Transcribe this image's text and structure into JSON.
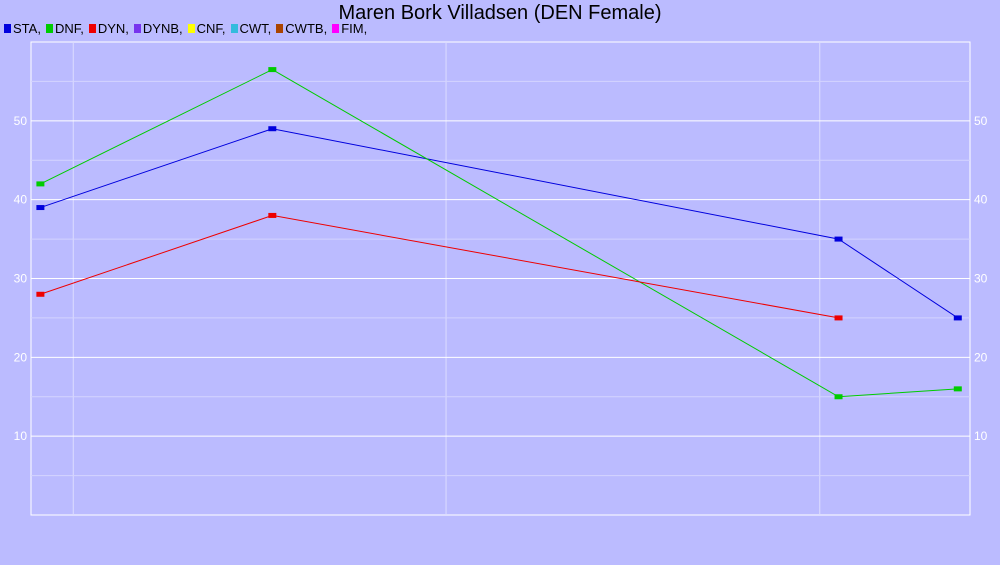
{
  "chart_data": {
    "type": "line",
    "title": "Maren Bork Villadsen (DEN Female)",
    "legend_position": "top-left",
    "legend": [
      {
        "label": "STA,",
        "color": "#0000dd"
      },
      {
        "label": "DNF,",
        "color": "#00cc00"
      },
      {
        "label": "DYN,",
        "color": "#ee0000"
      },
      {
        "label": "DYNB,",
        "color": "#7733ee"
      },
      {
        "label": "CNF,",
        "color": "#ffff00"
      },
      {
        "label": "CWT,",
        "color": "#33bbdd"
      },
      {
        "label": "CWTB,",
        "color": "#aa4400"
      },
      {
        "label": "FIM,",
        "color": "#ff00ff"
      }
    ],
    "xlim": [
      0,
      100
    ],
    "ylim": [
      0,
      60
    ],
    "yticks": [
      10,
      20,
      30,
      40,
      50
    ],
    "grid": true,
    "series": [
      {
        "name": "STA",
        "color": "#0000dd",
        "points": [
          [
            1,
            39
          ],
          [
            25.7,
            49
          ],
          [
            86,
            35
          ],
          [
            98.7,
            25
          ]
        ]
      },
      {
        "name": "DNF",
        "color": "#00cc00",
        "points": [
          [
            1,
            42
          ],
          [
            25.7,
            56.5
          ],
          [
            86,
            15
          ],
          [
            98.7,
            16
          ]
        ]
      },
      {
        "name": "DYN",
        "color": "#ee0000",
        "points": [
          [
            1,
            28
          ],
          [
            25.7,
            38
          ],
          [
            86,
            25
          ]
        ]
      }
    ]
  }
}
